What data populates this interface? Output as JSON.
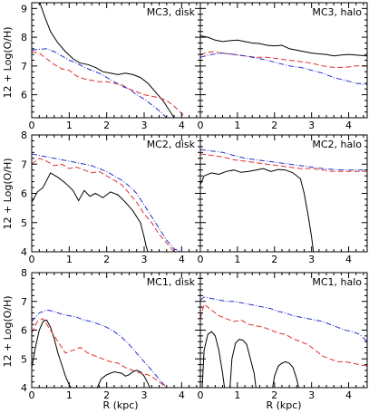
{
  "figure": {
    "ylabel": "12 + Log(O/H)",
    "xlabel": "R (kpc)"
  },
  "chart_data": [
    {
      "type": "line",
      "title": "MC3, disk",
      "xlim": [
        0,
        4.5
      ],
      "ylim": [
        5.2,
        9.2
      ],
      "yticks": [
        6,
        7,
        8,
        9
      ],
      "series": [
        {
          "color": "#000000",
          "dash": "solid",
          "x": [
            0.2,
            0.35,
            0.5,
            0.7,
            0.9,
            1.1,
            1.3,
            1.5,
            1.7,
            1.9,
            2.1,
            2.3,
            2.5,
            2.7,
            2.9,
            3.1,
            3.3,
            3.5,
            3.7,
            3.8
          ],
          "y": [
            9.25,
            8.7,
            8.2,
            7.8,
            7.5,
            7.25,
            7.1,
            7.05,
            6.95,
            6.8,
            6.75,
            6.7,
            6.75,
            6.7,
            6.6,
            6.4,
            6.1,
            5.8,
            5.4,
            5.2
          ]
        },
        {
          "color": "#e03030",
          "dash": "6,3",
          "x": [
            0,
            0.2,
            0.4,
            0.6,
            0.8,
            1.0,
            1.2,
            1.4,
            1.6,
            1.8,
            2.0,
            2.2,
            2.4,
            2.6,
            2.8,
            3.0,
            3.2,
            3.4,
            3.6,
            3.8,
            4.0,
            4.1
          ],
          "y": [
            7.5,
            7.45,
            7.25,
            7.05,
            6.9,
            6.85,
            6.65,
            6.55,
            6.5,
            6.45,
            6.45,
            6.4,
            6.35,
            6.2,
            6.1,
            6.0,
            5.95,
            5.9,
            5.8,
            5.6,
            5.35,
            5.2
          ]
        },
        {
          "color": "#2233cc",
          "dash": "6,2,1,2",
          "x": [
            0,
            0.2,
            0.4,
            0.6,
            0.8,
            1.0,
            1.2,
            1.4,
            1.6,
            1.8,
            2.0,
            2.2,
            2.4,
            2.6,
            2.8,
            3.0,
            3.2,
            3.4,
            3.6
          ],
          "y": [
            7.55,
            7.58,
            7.6,
            7.5,
            7.35,
            7.2,
            7.1,
            6.95,
            6.85,
            6.75,
            6.6,
            6.45,
            6.3,
            6.2,
            6.0,
            5.85,
            5.65,
            5.45,
            5.2
          ]
        }
      ]
    },
    {
      "type": "line",
      "title": "MC3, halo",
      "xlim": [
        0,
        4.5
      ],
      "ylim": [
        5.2,
        9.2
      ],
      "yticks": [
        6,
        7,
        8,
        9
      ],
      "series": [
        {
          "color": "#000000",
          "dash": "solid",
          "x": [
            0,
            0.2,
            0.4,
            0.6,
            0.8,
            1.0,
            1.2,
            1.4,
            1.6,
            1.8,
            2.0,
            2.2,
            2.4,
            2.6,
            2.8,
            3.0,
            3.2,
            3.4,
            3.6,
            3.8,
            4.0,
            4.2,
            4.5
          ],
          "y": [
            8.05,
            8.0,
            7.9,
            7.85,
            7.88,
            7.9,
            7.85,
            7.8,
            7.78,
            7.72,
            7.7,
            7.72,
            7.6,
            7.55,
            7.5,
            7.45,
            7.42,
            7.4,
            7.35,
            7.38,
            7.4,
            7.38,
            7.35
          ]
        },
        {
          "color": "#e03030",
          "dash": "6,3",
          "x": [
            0,
            0.3,
            0.6,
            0.9,
            1.2,
            1.5,
            1.8,
            2.1,
            2.4,
            2.7,
            3.0,
            3.3,
            3.6,
            3.9,
            4.2,
            4.5
          ],
          "y": [
            7.4,
            7.5,
            7.45,
            7.4,
            7.35,
            7.3,
            7.3,
            7.25,
            7.2,
            7.15,
            7.1,
            7.0,
            6.95,
            6.95,
            7.0,
            7.0
          ]
        },
        {
          "color": "#2233cc",
          "dash": "6,2,1,2",
          "x": [
            0,
            0.3,
            0.6,
            0.9,
            1.2,
            1.5,
            1.8,
            2.1,
            2.4,
            2.7,
            3.0,
            3.3,
            3.6,
            3.9,
            4.2,
            4.5
          ],
          "y": [
            7.3,
            7.4,
            7.45,
            7.4,
            7.35,
            7.28,
            7.2,
            7.1,
            7.0,
            6.95,
            6.85,
            6.75,
            6.6,
            6.5,
            6.4,
            6.35
          ]
        }
      ]
    },
    {
      "type": "line",
      "title": "MC2, disk",
      "xlim": [
        0,
        4.5
      ],
      "ylim": [
        4,
        8
      ],
      "yticks": [
        4,
        5,
        6,
        7,
        8
      ],
      "series": [
        {
          "color": "#000000",
          "dash": "solid",
          "x": [
            0,
            0.15,
            0.3,
            0.5,
            0.7,
            0.9,
            1.1,
            1.25,
            1.4,
            1.55,
            1.7,
            1.9,
            2.1,
            2.3,
            2.5,
            2.7,
            2.9,
            3.0,
            3.05,
            3.1
          ],
          "y": [
            5.7,
            6.05,
            6.2,
            6.7,
            6.55,
            6.35,
            6.1,
            5.75,
            6.1,
            5.9,
            6.0,
            5.85,
            6.05,
            5.95,
            5.7,
            5.4,
            5.0,
            4.5,
            4.2,
            4.0
          ]
        },
        {
          "color": "#e03030",
          "dash": "6,3",
          "x": [
            0,
            0.2,
            0.4,
            0.6,
            0.8,
            1.0,
            1.2,
            1.4,
            1.6,
            1.8,
            2.0,
            2.2,
            2.4,
            2.6,
            2.8,
            3.0,
            3.2,
            3.4,
            3.6,
            3.8
          ],
          "y": [
            7.0,
            7.2,
            7.1,
            6.95,
            7.0,
            6.85,
            6.9,
            6.8,
            6.7,
            6.75,
            6.6,
            6.45,
            6.3,
            6.0,
            5.7,
            5.3,
            5.0,
            4.6,
            4.3,
            4.0
          ]
        },
        {
          "color": "#2233cc",
          "dash": "6,2,1,2",
          "x": [
            0,
            0.2,
            0.4,
            0.6,
            0.8,
            1.0,
            1.2,
            1.4,
            1.6,
            1.8,
            2.0,
            2.2,
            2.4,
            2.6,
            2.8,
            3.0,
            3.2,
            3.4,
            3.6,
            3.8,
            4.0
          ],
          "y": [
            7.35,
            7.3,
            7.25,
            7.2,
            7.15,
            7.1,
            7.05,
            7.0,
            6.95,
            6.85,
            6.75,
            6.6,
            6.45,
            6.25,
            6.0,
            5.6,
            5.2,
            4.8,
            4.4,
            4.1,
            4.0
          ]
        }
      ]
    },
    {
      "type": "line",
      "title": "MC2, halo",
      "xlim": [
        0,
        4.5
      ],
      "ylim": [
        4,
        8
      ],
      "yticks": [
        4,
        5,
        6,
        7,
        8
      ],
      "series": [
        {
          "color": "#000000",
          "dash": "solid",
          "x": [
            0,
            0.1,
            0.3,
            0.5,
            0.7,
            0.9,
            1.1,
            1.3,
            1.5,
            1.7,
            1.9,
            2.1,
            2.3,
            2.5,
            2.7,
            2.8,
            2.9,
            3.0,
            3.05
          ],
          "y": [
            6.3,
            6.6,
            6.7,
            6.65,
            6.75,
            6.8,
            6.72,
            6.75,
            6.8,
            6.85,
            6.75,
            6.82,
            6.8,
            6.7,
            6.5,
            6.0,
            5.3,
            4.5,
            4.0
          ]
        },
        {
          "color": "#e03030",
          "dash": "6,3",
          "x": [
            0,
            0.3,
            0.6,
            0.9,
            1.2,
            1.5,
            1.8,
            2.1,
            2.4,
            2.7,
            3.0,
            3.3,
            3.6,
            3.9,
            4.2,
            4.5
          ],
          "y": [
            7.35,
            7.3,
            7.25,
            7.15,
            7.1,
            7.05,
            7.0,
            6.95,
            6.9,
            6.85,
            6.85,
            6.8,
            6.75,
            6.75,
            6.75,
            6.75
          ]
        },
        {
          "color": "#2233cc",
          "dash": "6,2,1,2",
          "x": [
            0,
            0.3,
            0.6,
            0.9,
            1.2,
            1.5,
            1.8,
            2.1,
            2.4,
            2.7,
            3.0,
            3.3,
            3.6,
            3.9,
            4.2,
            4.5
          ],
          "y": [
            7.5,
            7.45,
            7.4,
            7.3,
            7.2,
            7.15,
            7.1,
            7.05,
            7.0,
            6.95,
            6.9,
            6.85,
            6.82,
            6.8,
            6.8,
            6.8
          ]
        }
      ]
    },
    {
      "type": "line",
      "title": "MC1, disk",
      "xlim": [
        0,
        4.5
      ],
      "ylim": [
        4,
        8
      ],
      "yticks": [
        4,
        5,
        6,
        7,
        8
      ],
      "series": [
        {
          "color": "#000000",
          "dash": "solid",
          "x": [
            0,
            0.1,
            0.2,
            0.3,
            0.4,
            0.5,
            0.6,
            0.7,
            0.8,
            0.9,
            1.0,
            1.05
          ],
          "y": [
            4.7,
            5.4,
            6.0,
            6.3,
            6.35,
            6.1,
            5.7,
            5.2,
            4.8,
            4.4,
            4.1,
            4.0
          ]
        },
        {
          "color": "#000000",
          "dash": "solid",
          "x": [
            1.75,
            1.85,
            2.0,
            2.2,
            2.4,
            2.5,
            2.6,
            2.7,
            2.8,
            2.9,
            3.0,
            3.1,
            3.15
          ],
          "y": [
            4.0,
            4.3,
            4.45,
            4.55,
            4.5,
            4.4,
            4.45,
            4.55,
            4.6,
            4.55,
            4.4,
            4.15,
            4.0
          ]
        },
        {
          "color": "#e03030",
          "dash": "6,3",
          "x": [
            0,
            0.15,
            0.3,
            0.5,
            0.7,
            0.9,
            1.1,
            1.3,
            1.5,
            1.7,
            1.9,
            2.1,
            2.3,
            2.5,
            2.7,
            2.9,
            3.1,
            3.3,
            3.5,
            3.6
          ],
          "y": [
            5.9,
            6.3,
            6.4,
            6.0,
            5.6,
            5.2,
            5.3,
            5.4,
            5.2,
            5.1,
            5.0,
            4.9,
            4.85,
            4.7,
            4.6,
            4.5,
            4.45,
            4.3,
            4.1,
            4.0
          ]
        },
        {
          "color": "#2233cc",
          "dash": "6,2,1,2",
          "x": [
            0,
            0.2,
            0.4,
            0.6,
            0.8,
            1.0,
            1.2,
            1.4,
            1.6,
            1.8,
            2.0,
            2.2,
            2.4,
            2.6,
            2.8,
            3.0,
            3.2,
            3.4,
            3.6
          ],
          "y": [
            6.3,
            6.6,
            6.7,
            6.65,
            6.55,
            6.5,
            6.45,
            6.35,
            6.3,
            6.2,
            6.1,
            5.95,
            5.75,
            5.5,
            5.2,
            4.9,
            4.6,
            4.3,
            4.0
          ]
        }
      ]
    },
    {
      "type": "line",
      "title": "MC1, halo",
      "xlim": [
        0,
        4.5
      ],
      "ylim": [
        4,
        8
      ],
      "yticks": [
        4,
        5,
        6,
        7,
        8
      ],
      "series": [
        {
          "color": "#000000",
          "dash": "solid",
          "x": [
            0.05,
            0.1,
            0.2,
            0.3,
            0.4,
            0.5,
            0.6,
            0.65
          ],
          "y": [
            4.0,
            5.3,
            5.85,
            5.95,
            5.8,
            5.3,
            4.5,
            4.0
          ]
        },
        {
          "color": "#000000",
          "dash": "solid",
          "x": [
            0.8,
            0.85,
            0.95,
            1.05,
            1.15,
            1.25,
            1.35,
            1.45,
            1.5
          ],
          "y": [
            4.0,
            5.0,
            5.55,
            5.68,
            5.65,
            5.5,
            5.0,
            4.5,
            4.0
          ]
        },
        {
          "color": "#000000",
          "dash": "solid",
          "x": [
            1.95,
            2.0,
            2.1,
            2.2,
            2.3,
            2.4,
            2.5,
            2.6,
            2.65
          ],
          "y": [
            4.0,
            4.4,
            4.75,
            4.85,
            4.9,
            4.85,
            4.7,
            4.3,
            4.0
          ]
        },
        {
          "color": "#e03030",
          "dash": "6,3",
          "x": [
            0,
            0.1,
            0.3,
            0.5,
            0.7,
            0.9,
            1.1,
            1.3,
            1.5,
            1.7,
            1.9,
            2.1,
            2.3,
            2.5,
            2.7,
            2.9,
            3.1,
            3.3,
            3.5,
            3.7,
            3.9,
            4.1,
            4.3,
            4.5
          ],
          "y": [
            6.4,
            6.9,
            6.7,
            6.5,
            6.4,
            6.3,
            6.35,
            6.2,
            6.15,
            6.1,
            6.0,
            5.9,
            5.85,
            5.7,
            5.6,
            5.5,
            5.3,
            5.1,
            5.0,
            4.9,
            4.9,
            4.85,
            4.8,
            4.75
          ]
        },
        {
          "color": "#2233cc",
          "dash": "6,2,1,2",
          "x": [
            0,
            0.1,
            0.3,
            0.5,
            0.7,
            0.9,
            1.1,
            1.3,
            1.5,
            1.7,
            1.9,
            2.1,
            2.3,
            2.5,
            2.7,
            2.9,
            3.1,
            3.3,
            3.5,
            3.7,
            3.9,
            4.1,
            4.3,
            4.5
          ],
          "y": [
            7.05,
            7.15,
            7.1,
            7.05,
            7.0,
            7.0,
            6.95,
            6.9,
            6.85,
            6.8,
            6.75,
            6.65,
            6.6,
            6.5,
            6.45,
            6.4,
            6.35,
            6.3,
            6.2,
            6.1,
            6.0,
            5.95,
            5.85,
            5.6
          ]
        }
      ]
    }
  ]
}
